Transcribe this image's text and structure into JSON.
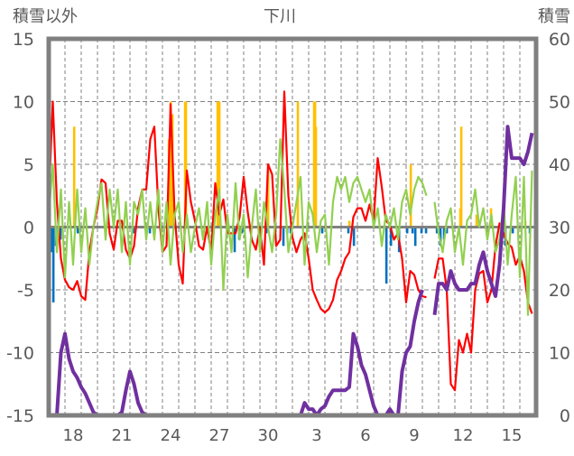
{
  "chart_data": {
    "type": "line",
    "title": "下川",
    "ylabel_left": "積雪以外",
    "ylabel_right": "積雪",
    "ylim_left": [
      -15,
      15
    ],
    "ylim_right": [
      0,
      60
    ],
    "yticks_left": [
      "15",
      "10",
      "5",
      "0",
      "-5",
      "-10",
      "-15"
    ],
    "yticks_right": [
      "60",
      "50",
      "40",
      "30",
      "20",
      "10",
      "0"
    ],
    "x_range_days": [
      0,
      30
    ],
    "x_step_days": 0.25,
    "xticks": [
      {
        "day": 1.5,
        "label": "18"
      },
      {
        "day": 4.5,
        "label": "21"
      },
      {
        "day": 7.5,
        "label": "24"
      },
      {
        "day": 10.5,
        "label": "27"
      },
      {
        "day": 13.5,
        "label": "30"
      },
      {
        "day": 16.5,
        "label": "3"
      },
      {
        "day": 19.5,
        "label": "6"
      },
      {
        "day": 22.5,
        "label": "9"
      },
      {
        "day": 25.5,
        "label": "12"
      },
      {
        "day": 28.5,
        "label": "15"
      }
    ],
    "grid": true,
    "series": [
      {
        "name": "red",
        "axis": "left",
        "color": "#ff0000",
        "values": [
          2,
          10,
          2,
          -2.5,
          -4.2,
          -4.8,
          -5,
          -4.3,
          -5.5,
          -5.8,
          -2,
          0,
          1.5,
          3.8,
          3.5,
          -0.5,
          -1.8,
          0.5,
          0.5,
          -1.8,
          -2.5,
          -1.5,
          1.5,
          3,
          3,
          7,
          8,
          1.5,
          -2,
          -1.5,
          9.8,
          1,
          -3,
          -4.5,
          4.5,
          2,
          0.5,
          -1.5,
          -1.8,
          0,
          -2,
          3.5,
          1,
          2.2,
          -0.5,
          -0.5,
          -0.5,
          0.8,
          4,
          1.2,
          -1,
          -1.8,
          0,
          -3,
          5,
          4.2,
          -1.5,
          -1,
          10.8,
          2.5,
          -0.8,
          -2,
          -1,
          -0.5,
          -2.5,
          -5,
          -5.8,
          -6.5,
          -6.8,
          -6.5,
          -5.8,
          -4.2,
          -3.5,
          -2.5,
          -2,
          0.8,
          1.5,
          1.5,
          0.5,
          1.8,
          0.5,
          5.5,
          3.2,
          0.5,
          0.2,
          -1,
          -0.5,
          -2.5,
          -6,
          -3.5,
          -3.8,
          -5,
          -5.5,
          -5.6,
          null,
          -4.1,
          -2.5,
          -2.5,
          -5,
          -12.5,
          -13,
          -9,
          -10,
          -8.5,
          -10,
          -5,
          -3.7,
          -3.5,
          -6,
          -5,
          -1.5,
          0.3,
          -0.5,
          -1.3,
          -1.6,
          -3,
          -2.3,
          -3.5,
          -6,
          -6.9
        ]
      },
      {
        "name": "green",
        "axis": "left",
        "color": "#92d050",
        "values": [
          1,
          5,
          -2,
          3,
          -4,
          2,
          -3,
          3,
          -2,
          1.5,
          -3,
          0,
          2,
          3.5,
          -1,
          3,
          0,
          3,
          -2,
          2,
          -3,
          2,
          1,
          3,
          -1,
          2,
          -1,
          3,
          -2,
          2,
          -3,
          1,
          2,
          -2,
          1,
          -2,
          0,
          1.5,
          -1,
          2,
          -3,
          1,
          3,
          -5,
          1,
          -2,
          3.5,
          -1,
          1,
          -4,
          0,
          3,
          -2,
          2,
          0,
          -2,
          1,
          7,
          3,
          -2,
          0,
          2,
          4,
          -3,
          2,
          1,
          -2,
          0.5,
          1,
          -3,
          2,
          4,
          3,
          4,
          2,
          3.5,
          4,
          3,
          2,
          3,
          0,
          1.5,
          -1.5,
          1,
          0,
          1.5,
          -1,
          2,
          3,
          1,
          3,
          4,
          3.5,
          2.5,
          null,
          2,
          -0.5,
          -2,
          0.5,
          1.5,
          -2,
          0,
          -3,
          0.5,
          1,
          3,
          0,
          1.5,
          -1,
          1,
          -2,
          -1,
          2,
          -3,
          1,
          4,
          -4,
          4,
          -7,
          4.5
        ]
      },
      {
        "name": "purple",
        "axis": "right",
        "color": "#7030a0",
        "values": [
          0,
          0,
          0,
          10,
          13,
          9,
          7,
          6,
          4.5,
          3.5,
          2,
          0.5,
          0,
          0,
          0,
          0,
          0,
          0,
          0.5,
          4,
          7,
          5,
          2,
          0.5,
          0,
          0,
          0,
          0,
          0,
          0,
          0,
          0,
          0,
          0,
          0,
          0,
          0,
          0,
          0,
          0,
          0,
          0,
          0,
          0,
          0,
          0,
          0,
          0,
          0,
          0,
          0,
          0,
          0,
          0,
          0,
          0,
          0,
          0,
          0,
          0,
          0,
          0,
          0,
          2,
          1,
          1,
          0,
          1,
          1.5,
          3,
          4,
          4,
          4,
          4,
          4.5,
          13,
          11,
          8,
          6.5,
          4,
          1.5,
          0,
          0,
          0,
          1,
          0,
          0,
          7,
          10,
          11,
          15,
          18,
          20,
          null,
          null,
          16,
          21,
          21,
          20,
          23,
          21,
          20,
          20,
          20,
          21,
          21,
          24,
          26,
          23,
          21,
          19,
          24,
          33,
          46,
          41,
          41,
          41,
          40,
          42,
          45
        ]
      }
    ],
    "bars": [
      {
        "name": "blue",
        "color": "#0070c0",
        "points": [
          [
            0.17,
            -2
          ],
          [
            0.28,
            -6
          ],
          [
            0.44,
            -1.5
          ],
          [
            0.72,
            -1
          ],
          [
            1.78,
            -0.5
          ],
          [
            5.22,
            -0.5
          ],
          [
            6.22,
            -0.5
          ],
          [
            7.33,
            -0.5
          ],
          [
            11.44,
            -2
          ],
          [
            11.72,
            -1
          ],
          [
            11.89,
            -0.5
          ],
          [
            13.39,
            -0.5
          ],
          [
            14.44,
            -1.5
          ],
          [
            14.67,
            -0.5
          ],
          [
            14.89,
            -0.5
          ],
          [
            16.83,
            -0.5
          ],
          [
            18.44,
            -0.5
          ],
          [
            18.78,
            -1.5
          ],
          [
            20.78,
            -4.5
          ],
          [
            21.06,
            -1.5
          ],
          [
            21.56,
            -2
          ],
          [
            22.06,
            -0.5
          ],
          [
            22.39,
            -0.5
          ],
          [
            22.56,
            -1.5
          ],
          [
            22.94,
            -0.5
          ],
          [
            23.22,
            -0.5
          ],
          [
            23.89,
            -0.5
          ],
          [
            24.11,
            -1.5
          ],
          [
            24.33,
            -1
          ],
          [
            24.5,
            -0.5
          ],
          [
            28.11,
            -1.5
          ],
          [
            28.56,
            -0.5
          ],
          [
            29.61,
            -0.5
          ]
        ]
      },
      {
        "name": "orange",
        "color": "#ffc000",
        "points": [
          [
            1.56,
            8
          ],
          [
            7.39,
            7
          ],
          [
            7.5,
            10
          ],
          [
            7.61,
            9
          ],
          [
            8.39,
            10
          ],
          [
            8.44,
            10
          ],
          [
            10.39,
            10
          ],
          [
            10.44,
            10
          ],
          [
            10.5,
            10
          ],
          [
            13.5,
            4.5
          ],
          [
            15.33,
            10
          ],
          [
            16.33,
            10
          ],
          [
            16.39,
            10
          ],
          [
            16.44,
            8
          ],
          [
            18.5,
            0.5
          ],
          [
            22.28,
            5
          ],
          [
            25.33,
            1.5
          ],
          [
            25.39,
            8
          ],
          [
            26.33,
            1
          ],
          [
            27.22,
            1.5
          ],
          [
            29.33,
            0.5
          ]
        ]
      }
    ]
  }
}
